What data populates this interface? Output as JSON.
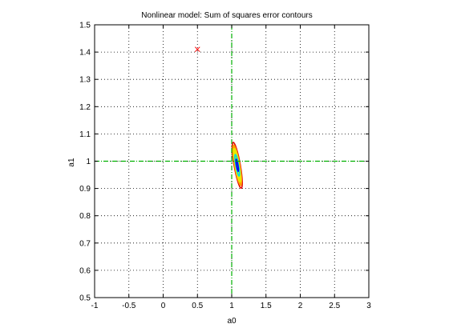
{
  "chart_data": {
    "type": "contour",
    "title": "Nonlinear model: Sum of squares error contours",
    "xlabel": "a0",
    "ylabel": "a1",
    "xlim": [
      -1,
      3
    ],
    "ylim": [
      0.5,
      1.5
    ],
    "x_ticks": [
      -1,
      -0.5,
      0,
      0.5,
      1,
      1.5,
      2,
      2.5,
      3
    ],
    "y_ticks": [
      0.5,
      0.6,
      0.7,
      0.8,
      0.9,
      1.0,
      1.1,
      1.2,
      1.3,
      1.4,
      1.5
    ],
    "x_tick_labels": [
      "-1",
      "-0.5",
      "0",
      "0.5",
      "1",
      "1.5",
      "2",
      "2.5",
      "3"
    ],
    "y_tick_labels": [
      "0.5",
      "0.6",
      "0.7",
      "0.8",
      "0.9",
      "1",
      "1.1",
      "1.2",
      "1.3",
      "1.4",
      "1.5"
    ],
    "grid": true,
    "grid_style": "dotted",
    "reference_lines": {
      "vertical_x": 1,
      "horizontal_y": 1,
      "color": "#00b000",
      "style": "dash-dot"
    },
    "marker": {
      "x": 0.5,
      "y": 1.41,
      "symbol": "x",
      "color": "#ff0000"
    },
    "contours": {
      "center": [
        1.08,
        0.985
      ],
      "orientation_deg": -80,
      "levels": [
        {
          "color": "#e00000",
          "length_x": 0.68,
          "width_x": 0.09,
          "filled": false
        },
        {
          "color": "#ff9900",
          "length_x": 0.6,
          "width_x": 0.075,
          "filled": true
        },
        {
          "color": "#e8e800",
          "length_x": 0.5,
          "width_x": 0.06,
          "filled": true
        },
        {
          "color": "#00dddd",
          "length_x": 0.32,
          "width_x": 0.04,
          "filled": false
        },
        {
          "color": "#0000ff",
          "length_x": 0.18,
          "width_x": 0.022,
          "filled": false
        }
      ]
    }
  }
}
